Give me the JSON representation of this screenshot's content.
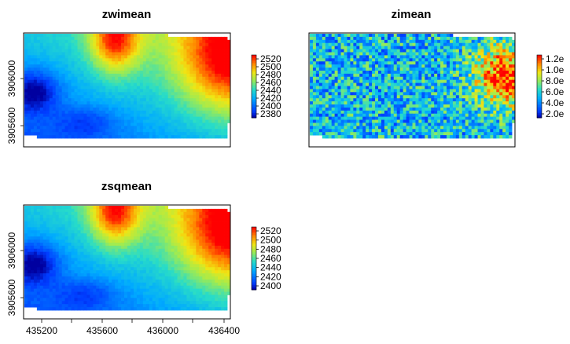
{
  "chart_data": [
    {
      "type": "heatmap",
      "title": "zwimean",
      "colorbar": {
        "ticks": [
          "2520",
          "2500",
          "2480",
          "2460",
          "2440",
          "2420",
          "2400",
          "2380"
        ],
        "range": [
          2380,
          2525
        ]
      },
      "y_ticks": [
        "3906000",
        "3905600"
      ],
      "x_ticks": [],
      "pattern": "terrain"
    },
    {
      "type": "heatmap",
      "title": "zimean",
      "colorbar": {
        "ticks": [
          "1.2e",
          "1.0e",
          "8.0e",
          "6.0e",
          "4.0e",
          "2.0e"
        ],
        "range": [
          0.2,
          1.2
        ]
      },
      "y_ticks": [],
      "x_ticks": [],
      "pattern": "noise"
    },
    {
      "type": "heatmap",
      "title": "zsqmean",
      "colorbar": {
        "ticks": [
          "2520",
          "2500",
          "2480",
          "2460",
          "2440",
          "2420",
          "2400"
        ],
        "range": [
          2390,
          2525
        ]
      },
      "y_ticks": [
        "3906000",
        "3905600"
      ],
      "x_ticks": [
        "435200",
        "435600",
        "436000",
        "436400"
      ],
      "pattern": "terrain"
    }
  ]
}
